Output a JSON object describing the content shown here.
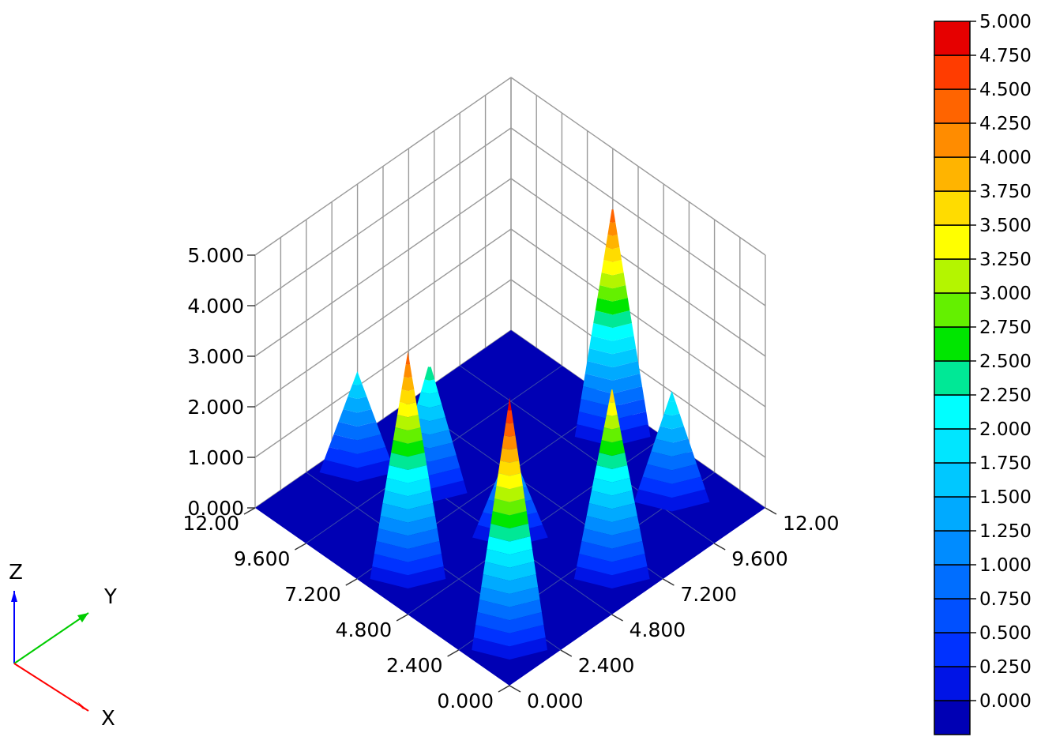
{
  "chart_data": {
    "type": "surface3d",
    "title": "",
    "x_axis": {
      "label": "X",
      "range": [
        0,
        12
      ],
      "ticks": [
        "0.000",
        "2.400",
        "4.800",
        "7.200",
        "9.600",
        "12.00"
      ]
    },
    "y_axis": {
      "label": "Y",
      "range": [
        0,
        12
      ],
      "ticks": [
        "0.000",
        "2.400",
        "4.800",
        "7.200",
        "9.600",
        "12.00"
      ]
    },
    "z_axis": {
      "label": "Z",
      "range": [
        0,
        5
      ],
      "ticks": [
        "0.000",
        "1.000",
        "2.000",
        "3.000",
        "4.000",
        "5.000"
      ]
    },
    "grid": true,
    "peaks": [
      {
        "x": 1.2,
        "y": 1.2,
        "height": 5.0
      },
      {
        "x": 6.0,
        "y": 1.2,
        "height": 4.5
      },
      {
        "x": 1.2,
        "y": 6.0,
        "height": 3.8
      },
      {
        "x": 5.0,
        "y": 5.0,
        "height": 1.8
      },
      {
        "x": 8.4,
        "y": 4.6,
        "height": 2.6
      },
      {
        "x": 10.8,
        "y": 3.6,
        "height": 2.0
      },
      {
        "x": 6.0,
        "y": 10.8,
        "height": 4.6
      },
      {
        "x": 2.4,
        "y": 10.0,
        "height": 2.2
      }
    ],
    "colorbar": {
      "min": 0,
      "max": 5,
      "step": 0.25,
      "labels": [
        "5.000",
        "4.750",
        "4.500",
        "4.250",
        "4.000",
        "3.750",
        "3.500",
        "3.250",
        "3.000",
        "2.750",
        "2.500",
        "2.250",
        "2.000",
        "1.750",
        "1.500",
        "1.250",
        "1.000",
        "0.750",
        "0.500",
        "0.250",
        "0.000"
      ],
      "colors": [
        "#0000b4",
        "#0014e6",
        "#0032ff",
        "#0050ff",
        "#006eff",
        "#008cff",
        "#00aaff",
        "#00c8ff",
        "#00e6ff",
        "#00ffff",
        "#00e896",
        "#00e600",
        "#64f000",
        "#b4f500",
        "#ffff00",
        "#ffdc00",
        "#ffb400",
        "#ff8c00",
        "#ff6400",
        "#ff3c00",
        "#e60000"
      ]
    },
    "legend": "colorbar-right",
    "triad": {
      "labels": [
        "Z",
        "Y",
        "X"
      ],
      "colors": {
        "x": "#ff0000",
        "y": "#00cc00",
        "z": "#0000ff"
      }
    }
  }
}
